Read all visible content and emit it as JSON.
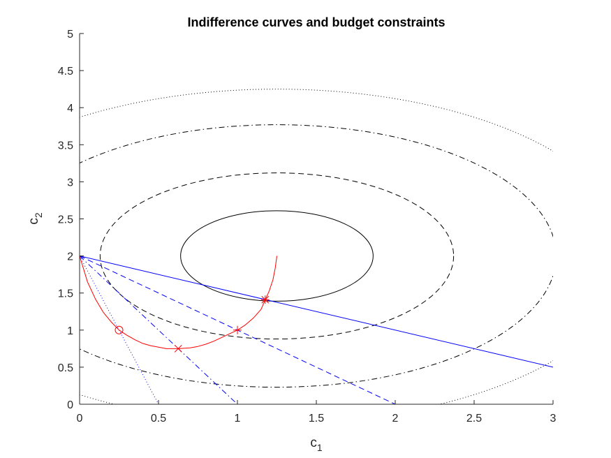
{
  "chart_data": {
    "type": "line",
    "title": "Indifference curves and budget constraints",
    "xlabel": "c",
    "xlabel_sub": "1",
    "ylabel": "c",
    "ylabel_sub": "2",
    "xlim": [
      0,
      3
    ],
    "ylim": [
      0,
      5
    ],
    "xticks": [
      0,
      0.5,
      1,
      1.5,
      2,
      2.5,
      3
    ],
    "xtick_labels": [
      "0",
      "0.5",
      "1",
      "1.5",
      "2",
      "2.5",
      "3"
    ],
    "yticks": [
      0,
      0.5,
      1,
      1.5,
      2,
      2.5,
      3,
      3.5,
      4,
      4.5,
      5
    ],
    "ytick_labels": [
      "0",
      "0.5",
      "1",
      "1.5",
      "2",
      "2.5",
      "3",
      "3.5",
      "4",
      "4.5",
      "5"
    ],
    "grid": false,
    "indifference_curves": {
      "center": [
        1.25,
        2.0
      ],
      "circles": [
        {
          "radius": 0.61,
          "style": "solid"
        },
        {
          "radius": 1.12,
          "style": "dashed"
        },
        {
          "radius": 1.77,
          "style": "dashdot"
        },
        {
          "radius": 2.25,
          "style": "dotted"
        }
      ],
      "color": "#000000"
    },
    "budget_constraints": {
      "color": "#0000ff",
      "lines": [
        {
          "style": "solid",
          "x": [
            0,
            3
          ],
          "y": [
            2,
            0.5
          ]
        },
        {
          "style": "dashed",
          "x": [
            0,
            2
          ],
          "y": [
            2,
            0
          ]
        },
        {
          "style": "dashdot",
          "x": [
            0,
            1
          ],
          "y": [
            2,
            0
          ]
        },
        {
          "style": "dotted",
          "x": [
            0,
            0.5
          ],
          "y": [
            2,
            0
          ]
        }
      ]
    },
    "optimal_path": {
      "color": "#ff0000",
      "x": [
        0,
        0.05,
        0.1,
        0.15,
        0.2,
        0.25,
        0.3,
        0.35,
        0.4,
        0.45,
        0.5,
        0.55,
        0.6,
        0.625,
        0.7,
        0.75,
        0.8,
        0.85,
        0.9,
        0.95,
        1.0,
        1.05,
        1.1,
        1.15,
        1.176,
        1.2,
        1.225,
        1.24,
        1.25
      ],
      "y": [
        2.0,
        1.65,
        1.42,
        1.24,
        1.11,
        1.0,
        0.93,
        0.87,
        0.82,
        0.79,
        0.77,
        0.75,
        0.75,
        0.75,
        0.76,
        0.78,
        0.81,
        0.85,
        0.9,
        0.95,
        1.0,
        1.07,
        1.16,
        1.28,
        1.41,
        1.52,
        1.68,
        1.84,
        2.0
      ],
      "markers": [
        {
          "x": 0.25,
          "y": 1.0,
          "marker": "circle"
        },
        {
          "x": 0.625,
          "y": 0.75,
          "marker": "x"
        },
        {
          "x": 1.0,
          "y": 1.0,
          "marker": "plus"
        },
        {
          "x": 1.176,
          "y": 1.41,
          "marker": "star"
        }
      ]
    }
  }
}
